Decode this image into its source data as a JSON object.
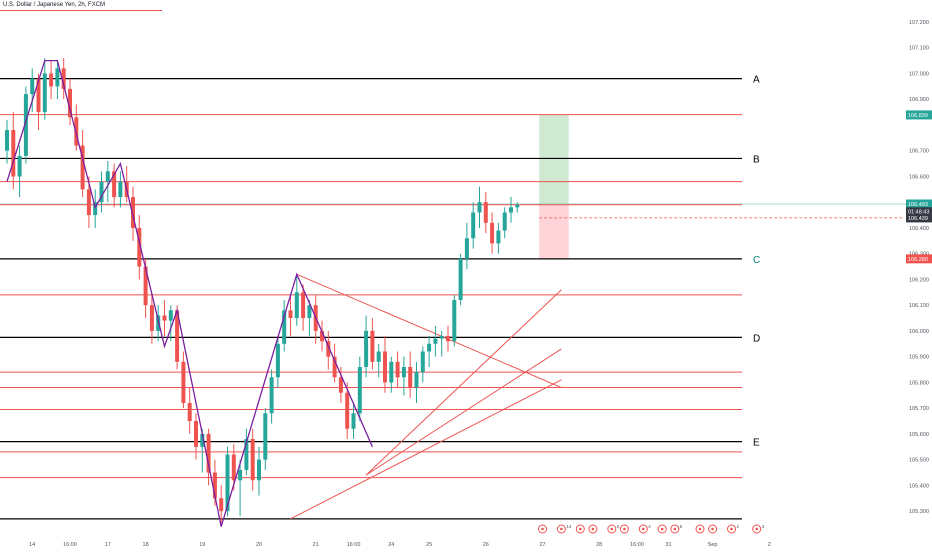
{
  "header": {
    "symbol_title": "U.S. Dollar / Japanese Yen, 2h, FXCM"
  },
  "colors": {
    "up": "#26a69a",
    "down": "#ef5350",
    "zigzag": "#7b1fa2",
    "support_red": "#ef5350",
    "key_black": "#000000",
    "teal_label": "#00897b",
    "target_zone": "#c8e6c9",
    "stop_zone": "#ffcdd2",
    "grid": "#ffffff",
    "axis_text": "#50535e",
    "price_bg_green": "#26a69a",
    "price_bg_dark": "#363a45",
    "price_bg_red": "#ef5350"
  },
  "chart_data": {
    "type": "candlestick",
    "title": "U.S. Dollar / Japanese Yen, 2h, FXCM",
    "ylim": [
      105.25,
      107.2
    ],
    "yticks": [
      {
        "v": 107.2,
        "label": "107.200"
      },
      {
        "v": 107.1,
        "label": "107.100"
      },
      {
        "v": 107.0,
        "label": "107.000"
      },
      {
        "v": 106.9,
        "label": "106.900"
      },
      {
        "v": 106.7,
        "label": "106.700"
      },
      {
        "v": 106.6,
        "label": "106.600"
      },
      {
        "v": 106.4,
        "label": "106.400"
      },
      {
        "v": 106.3,
        "label": "106.300"
      },
      {
        "v": 106.2,
        "label": "106.200"
      },
      {
        "v": 106.1,
        "label": "106.100"
      },
      {
        "v": 106.0,
        "label": "106.000"
      },
      {
        "v": 105.9,
        "label": "105.900"
      },
      {
        "v": 105.8,
        "label": "105.800"
      },
      {
        "v": 105.7,
        "label": "105.700"
      },
      {
        "v": 105.6,
        "label": "105.600"
      },
      {
        "v": 105.5,
        "label": "105.500"
      },
      {
        "v": 105.4,
        "label": "105.400"
      },
      {
        "v": 105.3,
        "label": "105.300"
      }
    ],
    "xticks": [
      {
        "i": 4,
        "label": "14"
      },
      {
        "i": 10,
        "label": "16:00"
      },
      {
        "i": 16,
        "label": "17"
      },
      {
        "i": 22,
        "label": "18"
      },
      {
        "i": 31,
        "label": "19"
      },
      {
        "i": 40,
        "label": "20"
      },
      {
        "i": 49,
        "label": "21"
      },
      {
        "i": 55,
        "label": "16:00"
      },
      {
        "i": 61,
        "label": "24"
      },
      {
        "i": 67,
        "label": "25"
      },
      {
        "i": 76,
        "label": "26"
      },
      {
        "i": 85,
        "label": "27"
      },
      {
        "i": 94,
        "label": "28"
      },
      {
        "i": 100,
        "label": "16:00"
      },
      {
        "i": 105,
        "label": "31"
      },
      {
        "i": 112,
        "label": "Sep"
      },
      {
        "i": 121,
        "label": "2"
      }
    ],
    "candles": [
      [
        106.7,
        106.82,
        106.65,
        106.78
      ],
      [
        106.78,
        106.85,
        106.55,
        106.6
      ],
      [
        106.6,
        106.72,
        106.52,
        106.68
      ],
      [
        106.68,
        106.95,
        106.65,
        106.92
      ],
      [
        106.92,
        107.02,
        106.85,
        106.98
      ],
      [
        106.98,
        107.0,
        106.78,
        106.85
      ],
      [
        106.85,
        107.06,
        106.82,
        107.0
      ],
      [
        107.0,
        107.05,
        106.9,
        106.95
      ],
      [
        106.95,
        107.05,
        106.9,
        107.02
      ],
      [
        107.02,
        107.06,
        106.9,
        106.94
      ],
      [
        106.94,
        106.98,
        106.8,
        106.83
      ],
      [
        106.83,
        106.88,
        106.7,
        106.72
      ],
      [
        106.72,
        106.78,
        106.52,
        106.55
      ],
      [
        106.55,
        106.6,
        106.4,
        106.45
      ],
      [
        106.45,
        106.55,
        106.4,
        106.5
      ],
      [
        106.5,
        106.62,
        106.46,
        106.58
      ],
      [
        106.58,
        106.66,
        106.5,
        106.62
      ],
      [
        106.62,
        106.65,
        106.48,
        106.52
      ],
      [
        106.52,
        106.62,
        106.48,
        106.58
      ],
      [
        106.58,
        106.64,
        106.5,
        106.52
      ],
      [
        106.52,
        106.56,
        106.35,
        106.4
      ],
      [
        106.4,
        106.45,
        106.2,
        106.25
      ],
      [
        106.25,
        106.28,
        106.05,
        106.1
      ],
      [
        106.1,
        106.15,
        105.95,
        106.0
      ],
      [
        106.0,
        106.1,
        105.96,
        106.06
      ],
      [
        106.06,
        106.12,
        105.98,
        106.04
      ],
      [
        106.04,
        106.1,
        105.96,
        106.08
      ],
      [
        106.08,
        106.1,
        105.85,
        105.88
      ],
      [
        105.88,
        105.92,
        105.7,
        105.72
      ],
      [
        105.72,
        105.78,
        105.6,
        105.65
      ],
      [
        105.65,
        105.68,
        105.5,
        105.55
      ],
      [
        105.55,
        105.62,
        105.45,
        105.6
      ],
      [
        105.6,
        105.62,
        105.4,
        105.45
      ],
      [
        105.45,
        105.5,
        105.32,
        105.35
      ],
      [
        105.35,
        105.4,
        105.24,
        105.3
      ],
      [
        105.3,
        105.55,
        105.28,
        105.52
      ],
      [
        105.52,
        105.56,
        105.38,
        105.42
      ],
      [
        105.42,
        105.5,
        105.28,
        105.46
      ],
      [
        105.46,
        105.62,
        105.44,
        105.58
      ],
      [
        105.58,
        105.62,
        105.38,
        105.42
      ],
      [
        105.42,
        105.55,
        105.36,
        105.5
      ],
      [
        105.5,
        105.7,
        105.46,
        105.68
      ],
      [
        105.68,
        105.85,
        105.64,
        105.82
      ],
      [
        105.82,
        105.98,
        105.78,
        105.95
      ],
      [
        105.95,
        106.12,
        105.92,
        106.08
      ],
      [
        106.08,
        106.14,
        105.98,
        106.05
      ],
      [
        106.05,
        106.22,
        106.02,
        106.15
      ],
      [
        106.15,
        106.18,
        106.0,
        106.05
      ],
      [
        106.05,
        106.12,
        105.98,
        106.1
      ],
      [
        106.1,
        106.14,
        105.95,
        106.0
      ],
      [
        106.0,
        106.04,
        105.92,
        105.96
      ],
      [
        105.96,
        106.0,
        105.85,
        105.9
      ],
      [
        105.9,
        105.95,
        105.8,
        105.82
      ],
      [
        105.82,
        105.86,
        105.72,
        105.76
      ],
      [
        105.76,
        105.8,
        105.58,
        105.62
      ],
      [
        105.62,
        105.72,
        105.58,
        105.68
      ],
      [
        105.68,
        105.9,
        105.65,
        105.86
      ],
      [
        105.86,
        106.06,
        105.82,
        106.0
      ],
      [
        106.0,
        106.05,
        105.85,
        105.88
      ],
      [
        105.88,
        105.95,
        105.82,
        105.92
      ],
      [
        105.92,
        105.98,
        105.76,
        105.8
      ],
      [
        105.8,
        105.9,
        105.76,
        105.88
      ],
      [
        105.88,
        105.92,
        105.78,
        105.82
      ],
      [
        105.82,
        105.9,
        105.75,
        105.86
      ],
      [
        105.86,
        105.92,
        105.74,
        105.78
      ],
      [
        105.78,
        105.88,
        105.72,
        105.84
      ],
      [
        105.84,
        105.94,
        105.8,
        105.92
      ],
      [
        105.92,
        105.98,
        105.86,
        105.95
      ],
      [
        105.95,
        106.02,
        105.9,
        105.97
      ],
      [
        105.97,
        106.0,
        105.9,
        105.98
      ],
      [
        105.98,
        106.02,
        105.92,
        105.96
      ],
      [
        105.96,
        106.14,
        105.94,
        106.12
      ],
      [
        106.12,
        106.3,
        106.1,
        106.28
      ],
      [
        106.28,
        106.42,
        106.24,
        106.36
      ],
      [
        106.36,
        106.5,
        106.32,
        106.46
      ],
      [
        106.46,
        106.56,
        106.4,
        106.5
      ],
      [
        106.5,
        106.54,
        106.38,
        106.42
      ],
      [
        106.42,
        106.46,
        106.3,
        106.34
      ],
      [
        106.34,
        106.42,
        106.3,
        106.39
      ],
      [
        106.39,
        106.48,
        106.36,
        106.46
      ],
      [
        106.46,
        106.52,
        106.42,
        106.48
      ],
      [
        106.48,
        106.5,
        106.46,
        106.49
      ]
    ],
    "zigzag": [
      {
        "i": 0,
        "p": 106.58
      },
      {
        "i": 6,
        "p": 107.05
      },
      {
        "i": 8,
        "p": 107.05
      },
      {
        "i": 14,
        "p": 106.48
      },
      {
        "i": 18,
        "p": 106.65
      },
      {
        "i": 25,
        "p": 105.94
      },
      {
        "i": 27,
        "p": 106.08
      },
      {
        "i": 34,
        "p": 105.24
      },
      {
        "i": 46,
        "p": 106.22
      },
      {
        "i": 58,
        "p": 105.55
      }
    ],
    "trendlines": [
      {
        "from": {
          "i": 46,
          "p": 106.22
        },
        "to": {
          "i": 88,
          "p": 105.78
        }
      },
      {
        "from": {
          "i": 57,
          "p": 105.44
        },
        "to": {
          "i": 88,
          "p": 106.16
        }
      },
      {
        "from": {
          "i": 57,
          "p": 105.44
        },
        "to": {
          "i": 88,
          "p": 105.93
        }
      },
      {
        "from": {
          "i": 45,
          "p": 105.27
        },
        "to": {
          "i": 88,
          "p": 105.81
        }
      }
    ],
    "hlines_key": [
      {
        "p": 106.98,
        "label": "A",
        "label_color": "black"
      },
      {
        "p": 106.67,
        "label": "B",
        "label_color": "black"
      },
      {
        "p": 106.28,
        "label": "C",
        "label_color": "teal"
      },
      {
        "p": 105.975,
        "label": "D",
        "label_color": "black"
      },
      {
        "p": 105.57,
        "label": "E",
        "label_color": "black"
      },
      {
        "p": 105.27,
        "label": "",
        "label_color": "black"
      }
    ],
    "hlines_red": [
      106.84,
      106.58,
      106.49,
      106.14,
      105.84,
      105.78,
      105.695,
      105.53,
      105.43
    ],
    "position": {
      "start_i": 84,
      "end_i": 89,
      "entry": 106.49,
      "target": 106.84,
      "stop": 106.28
    },
    "price_labels": [
      {
        "p": 106.839,
        "text": "106.839",
        "style": "green"
      },
      {
        "p": 106.493,
        "text": "106.493",
        "style": "green"
      },
      {
        "p": 106.463,
        "text": "01:48:43",
        "style": "dark"
      },
      {
        "p": 106.439,
        "text": "106.439",
        "style": "dark"
      },
      {
        "p": 106.28,
        "text": "106.280",
        "style": "red"
      }
    ],
    "events": [
      {
        "i": 85,
        "label": ""
      },
      {
        "i": 88,
        "label": "14"
      },
      {
        "i": 91,
        "label": ""
      },
      {
        "i": 93,
        "label": ""
      },
      {
        "i": 96,
        "label": "2"
      },
      {
        "i": 98,
        "label": ""
      },
      {
        "i": 101,
        "label": "4"
      },
      {
        "i": 104,
        "label": ""
      },
      {
        "i": 106,
        "label": "6"
      },
      {
        "i": 110,
        "label": ""
      },
      {
        "i": 112,
        "label": ""
      },
      {
        "i": 115,
        "label": "2"
      },
      {
        "i": 119,
        "label": "3"
      }
    ]
  }
}
